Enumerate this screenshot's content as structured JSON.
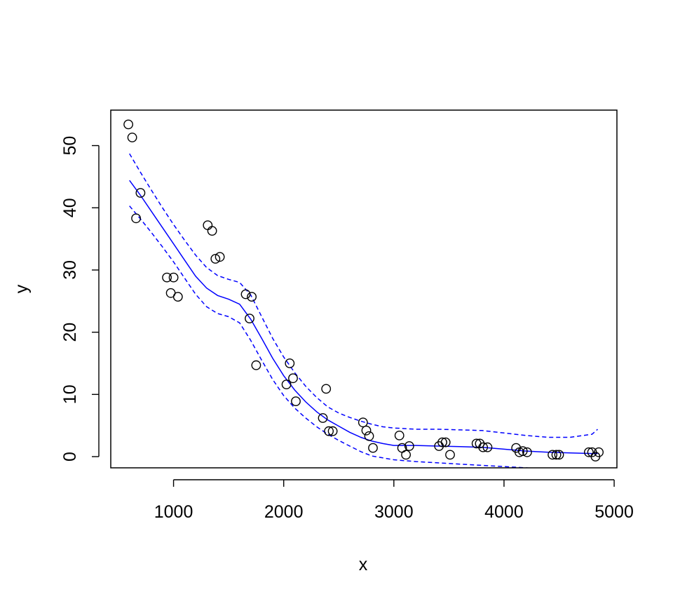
{
  "chart_data": {
    "type": "scatter",
    "title": "",
    "xlabel": "x",
    "ylabel": "y",
    "xlim": [
      430,
      5025
    ],
    "ylim": [
      -1.8,
      55.7
    ],
    "x_ticks": [
      1000,
      2000,
      3000,
      4000,
      5000
    ],
    "y_ticks": [
      0,
      10,
      20,
      30,
      40,
      50
    ],
    "x_tick_labels": [
      "1000",
      "2000",
      "3000",
      "4000",
      "5000"
    ],
    "y_tick_labels": [
      "0",
      "10",
      "20",
      "30",
      "40",
      "50"
    ],
    "grid": false,
    "legend": "none",
    "points": {
      "marker": "open-circle",
      "color": "#000000",
      "x": [
        590,
        625,
        660,
        700,
        940,
        975,
        1000,
        1040,
        1310,
        1350,
        1380,
        1420,
        1655,
        1690,
        1710,
        1750,
        2025,
        2055,
        2085,
        2110,
        2355,
        2385,
        2410,
        2445,
        2720,
        2750,
        2775,
        2810,
        3050,
        3075,
        3110,
        3140,
        3410,
        3440,
        3470,
        3510,
        3750,
        3780,
        3810,
        3850,
        4110,
        4140,
        4170,
        4210,
        4440,
        4475,
        4500,
        4770,
        4800,
        4830,
        4860
      ],
      "y": [
        53.4,
        51.3,
        38.3,
        42.4,
        28.8,
        26.3,
        28.8,
        25.7,
        37.2,
        36.3,
        31.8,
        32.1,
        26.1,
        22.2,
        25.7,
        14.7,
        11.6,
        15.0,
        12.6,
        8.9,
        6.2,
        10.9,
        4.1,
        4.1,
        5.5,
        4.2,
        3.3,
        1.4,
        3.4,
        1.4,
        0.3,
        1.7,
        1.7,
        2.3,
        2.3,
        0.3,
        2.1,
        2.1,
        1.5,
        1.5,
        1.4,
        0.7,
        0.9,
        0.7,
        0.3,
        0.3,
        0.3,
        0.7,
        0.7,
        0.0,
        0.7
      ]
    },
    "series": [
      {
        "role": "fit",
        "style": "solid",
        "color": "#0000ff",
        "x": [
          600,
          700,
          800,
          900,
          1000,
          1100,
          1200,
          1300,
          1400,
          1500,
          1600,
          1700,
          1800,
          1900,
          2000,
          2100,
          2200,
          2300,
          2400,
          2500,
          2600,
          2700,
          2800,
          2900,
          3000,
          3200,
          3400,
          3600,
          3800,
          4000,
          4200,
          4400,
          4600,
          4800,
          4850
        ],
        "y": [
          44.4,
          42.0,
          39.4,
          36.8,
          34.2,
          31.6,
          29.0,
          27.1,
          25.9,
          25.3,
          24.5,
          22.1,
          19.0,
          15.8,
          13.0,
          10.7,
          8.8,
          7.2,
          5.9,
          4.9,
          3.9,
          3.1,
          2.5,
          2.1,
          1.8,
          1.8,
          1.7,
          1.6,
          1.5,
          1.2,
          0.9,
          0.7,
          0.6,
          0.5,
          0.5
        ]
      },
      {
        "role": "upper-band",
        "style": "dashed",
        "color": "#0000ff",
        "x": [
          600,
          700,
          800,
          900,
          1000,
          1100,
          1200,
          1300,
          1400,
          1500,
          1600,
          1700,
          1800,
          1900,
          2000,
          2100,
          2200,
          2300,
          2400,
          2500,
          2600,
          2700,
          2800,
          2900,
          3000,
          3200,
          3400,
          3600,
          3800,
          4000,
          4200,
          4400,
          4600,
          4800,
          4850
        ],
        "y": [
          48.7,
          45.7,
          42.8,
          40.0,
          37.3,
          34.8,
          32.4,
          30.4,
          29.1,
          28.5,
          28.0,
          26.0,
          22.5,
          19.0,
          16.0,
          13.5,
          11.3,
          9.5,
          8.0,
          7.0,
          6.3,
          5.7,
          5.2,
          4.8,
          4.6,
          4.4,
          4.4,
          4.3,
          4.2,
          3.8,
          3.4,
          3.1,
          3.1,
          3.6,
          4.4
        ]
      },
      {
        "role": "lower-band",
        "style": "dashed",
        "color": "#0000ff",
        "x": [
          600,
          700,
          800,
          900,
          1000,
          1100,
          1200,
          1300,
          1400,
          1500,
          1600,
          1700,
          1800,
          1900,
          2000,
          2100,
          2200,
          2300,
          2400,
          2500,
          2600,
          2700,
          2800,
          2900,
          3000,
          3200,
          3400,
          3600,
          3800,
          4000,
          4200,
          4400,
          4600,
          4800,
          4850
        ],
        "y": [
          40.3,
          38.2,
          36.0,
          33.7,
          31.3,
          28.7,
          26.1,
          24.1,
          23.0,
          22.5,
          21.5,
          18.7,
          15.5,
          12.4,
          9.8,
          7.8,
          6.2,
          4.8,
          3.6,
          2.6,
          1.7,
          0.8,
          0.1,
          -0.2,
          -0.5,
          -0.8,
          -1.0,
          -1.2,
          -1.4,
          -1.6,
          -1.8,
          -2.0,
          -2.2,
          -2.4,
          -2.5
        ]
      }
    ]
  }
}
